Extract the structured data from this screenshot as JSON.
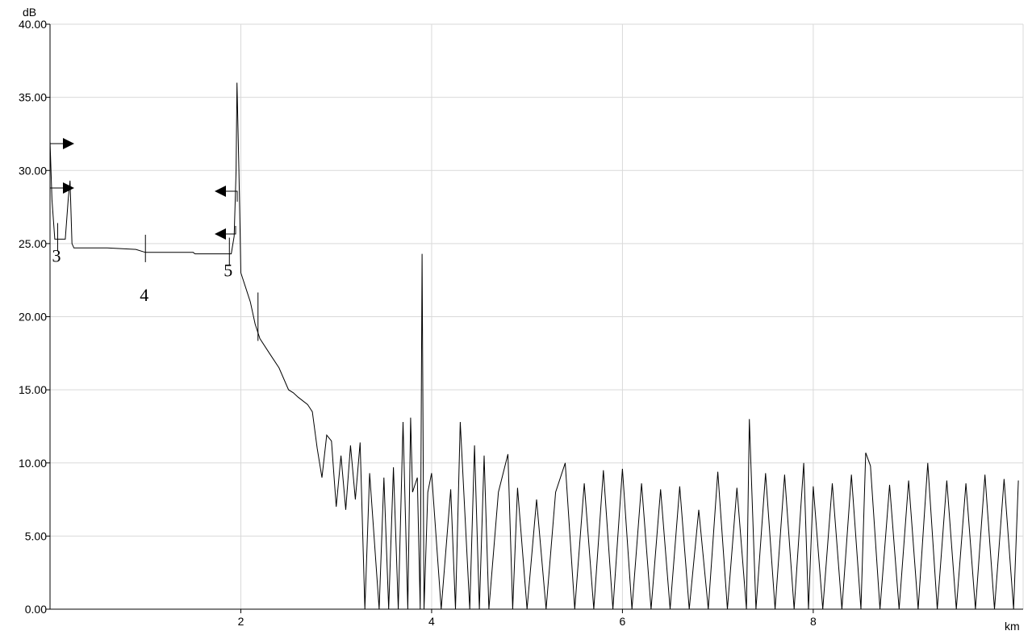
{
  "chart_data": {
    "type": "line",
    "title": "",
    "xlabel": "",
    "ylabel": "",
    "x_unit": "km",
    "y_unit": "dB",
    "xlim": [
      0,
      10.2
    ],
    "ylim": [
      0,
      40
    ],
    "x_ticks": [
      "2",
      "4",
      "6",
      "8"
    ],
    "y_ticks": [
      "0.00",
      "5.00",
      "10.00",
      "15.00",
      "20.00",
      "25.00",
      "30.00",
      "35.00",
      "40.00"
    ],
    "grid": true,
    "series": [
      {
        "name": "",
        "x": [
          0.0,
          0.02,
          0.05,
          0.08,
          0.12,
          0.16,
          0.19,
          0.21,
          0.23,
          0.25,
          0.28,
          0.6,
          0.9,
          1.0,
          1.1,
          1.5,
          1.52,
          1.9,
          1.93,
          1.95,
          1.96,
          1.98,
          2.0,
          2.05,
          2.1,
          2.15,
          2.2,
          2.3,
          2.4,
          2.5,
          2.55,
          2.6,
          2.7,
          2.75,
          2.8,
          2.85,
          2.9,
          2.95,
          3.0,
          3.05,
          3.1,
          3.15,
          3.2,
          3.25,
          3.3,
          3.35,
          3.45,
          3.5,
          3.55,
          3.6,
          3.65,
          3.7,
          3.75,
          3.78,
          3.8,
          3.85,
          3.88,
          3.9,
          3.92,
          3.96,
          4.0,
          4.1,
          4.2,
          4.25,
          4.3,
          4.4,
          4.45,
          4.5,
          4.55,
          4.6,
          4.7,
          4.8,
          4.85,
          4.9,
          5.0,
          5.1,
          5.2,
          5.3,
          5.4,
          5.5,
          5.6,
          5.7,
          5.8,
          5.9,
          6.0,
          6.1,
          6.2,
          6.3,
          6.4,
          6.5,
          6.6,
          6.7,
          6.8,
          6.9,
          7.0,
          7.1,
          7.2,
          7.3,
          7.33,
          7.4,
          7.5,
          7.6,
          7.7,
          7.8,
          7.9,
          7.95,
          8.0,
          8.1,
          8.2,
          8.3,
          8.4,
          8.5,
          8.55,
          8.6,
          8.7,
          8.8,
          8.9,
          9.0,
          9.1,
          9.2,
          9.3,
          9.4,
          9.5,
          9.6,
          9.7,
          9.8,
          9.9,
          10.0,
          10.1,
          10.15
        ],
        "y": [
          32.0,
          28.0,
          25.3,
          25.3,
          25.3,
          25.3,
          28.0,
          29.3,
          25.0,
          24.7,
          24.7,
          24.7,
          24.6,
          24.4,
          24.4,
          24.4,
          24.3,
          24.3,
          25.5,
          30.0,
          36.0,
          30.0,
          23.0,
          22.0,
          21.0,
          19.5,
          18.5,
          17.5,
          16.5,
          15.0,
          14.8,
          14.5,
          14.0,
          13.5,
          11.0,
          9.0,
          11.9,
          11.5,
          7.0,
          10.5,
          6.8,
          11.2,
          7.5,
          11.4,
          0.0,
          9.3,
          0.0,
          9.0,
          0.0,
          9.7,
          0.0,
          12.8,
          0.0,
          13.1,
          8.0,
          9.0,
          0.0,
          24.3,
          0.0,
          8.0,
          9.3,
          0.0,
          8.2,
          0.0,
          12.8,
          0.0,
          11.2,
          0.0,
          10.5,
          0.0,
          8.0,
          10.6,
          0.0,
          8.3,
          0.0,
          7.5,
          0.0,
          8.0,
          10.0,
          0.0,
          8.6,
          0.0,
          9.5,
          0.0,
          9.6,
          0.0,
          8.6,
          0.0,
          8.2,
          0.0,
          8.4,
          0.0,
          6.8,
          0.0,
          9.4,
          0.0,
          8.3,
          0.0,
          13.0,
          0.0,
          9.3,
          0.0,
          9.2,
          0.0,
          10.0,
          0.0,
          8.4,
          0.0,
          8.6,
          0.0,
          9.2,
          0.0,
          10.7,
          9.8,
          0.0,
          8.5,
          0.0,
          8.8,
          0.0,
          10.0,
          0.0,
          8.8,
          0.0,
          8.6,
          0.0,
          9.2,
          0.0,
          8.9,
          0.0,
          8.8
        ]
      }
    ],
    "event_markers": [
      {
        "label": "3",
        "x": 0.08,
        "y": 25.3
      },
      {
        "label": "4",
        "x": 1.0,
        "y": 24.5
      },
      {
        "label": "5",
        "x": 1.88,
        "y": 24.3
      }
    ],
    "cursor_ticks": [
      {
        "x": 2.18,
        "y": 20.0
      }
    ]
  }
}
